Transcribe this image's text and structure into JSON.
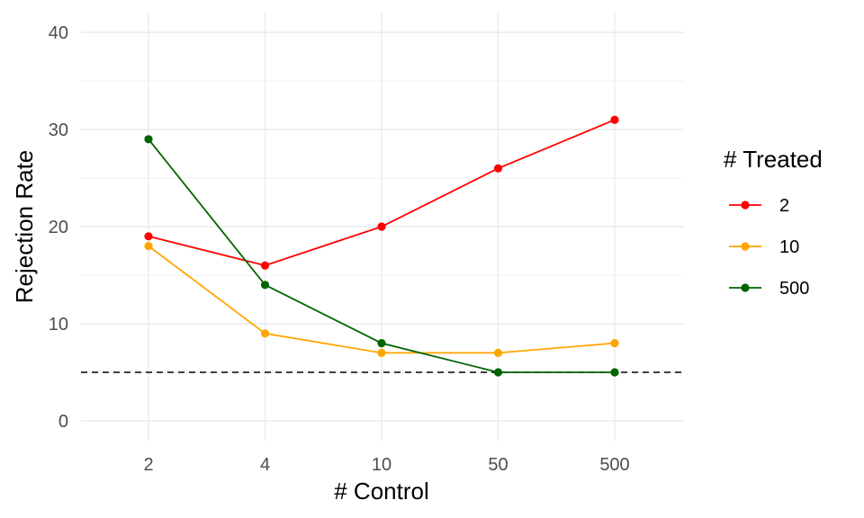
{
  "chart_data": {
    "type": "line",
    "title": "",
    "xlabel": "# Control",
    "ylabel": "Rejection Rate",
    "categories": [
      "2",
      "4",
      "10",
      "50",
      "500"
    ],
    "ylim": [
      0,
      40
    ],
    "yticks": [
      0,
      10,
      20,
      30,
      40
    ],
    "grid": true,
    "reference_line": {
      "y": 5,
      "style": "dashed",
      "color": "#000000"
    },
    "legend": {
      "title": "# Treated",
      "placement": "right"
    },
    "series": [
      {
        "name": "2",
        "color": "#ff0000",
        "values": [
          19,
          16,
          20,
          26,
          31
        ]
      },
      {
        "name": "10",
        "color": "#ffa500",
        "values": [
          18,
          9,
          7,
          7,
          8
        ]
      },
      {
        "name": "500",
        "color": "#006400",
        "values": [
          29,
          14,
          8,
          5,
          5
        ]
      }
    ]
  }
}
